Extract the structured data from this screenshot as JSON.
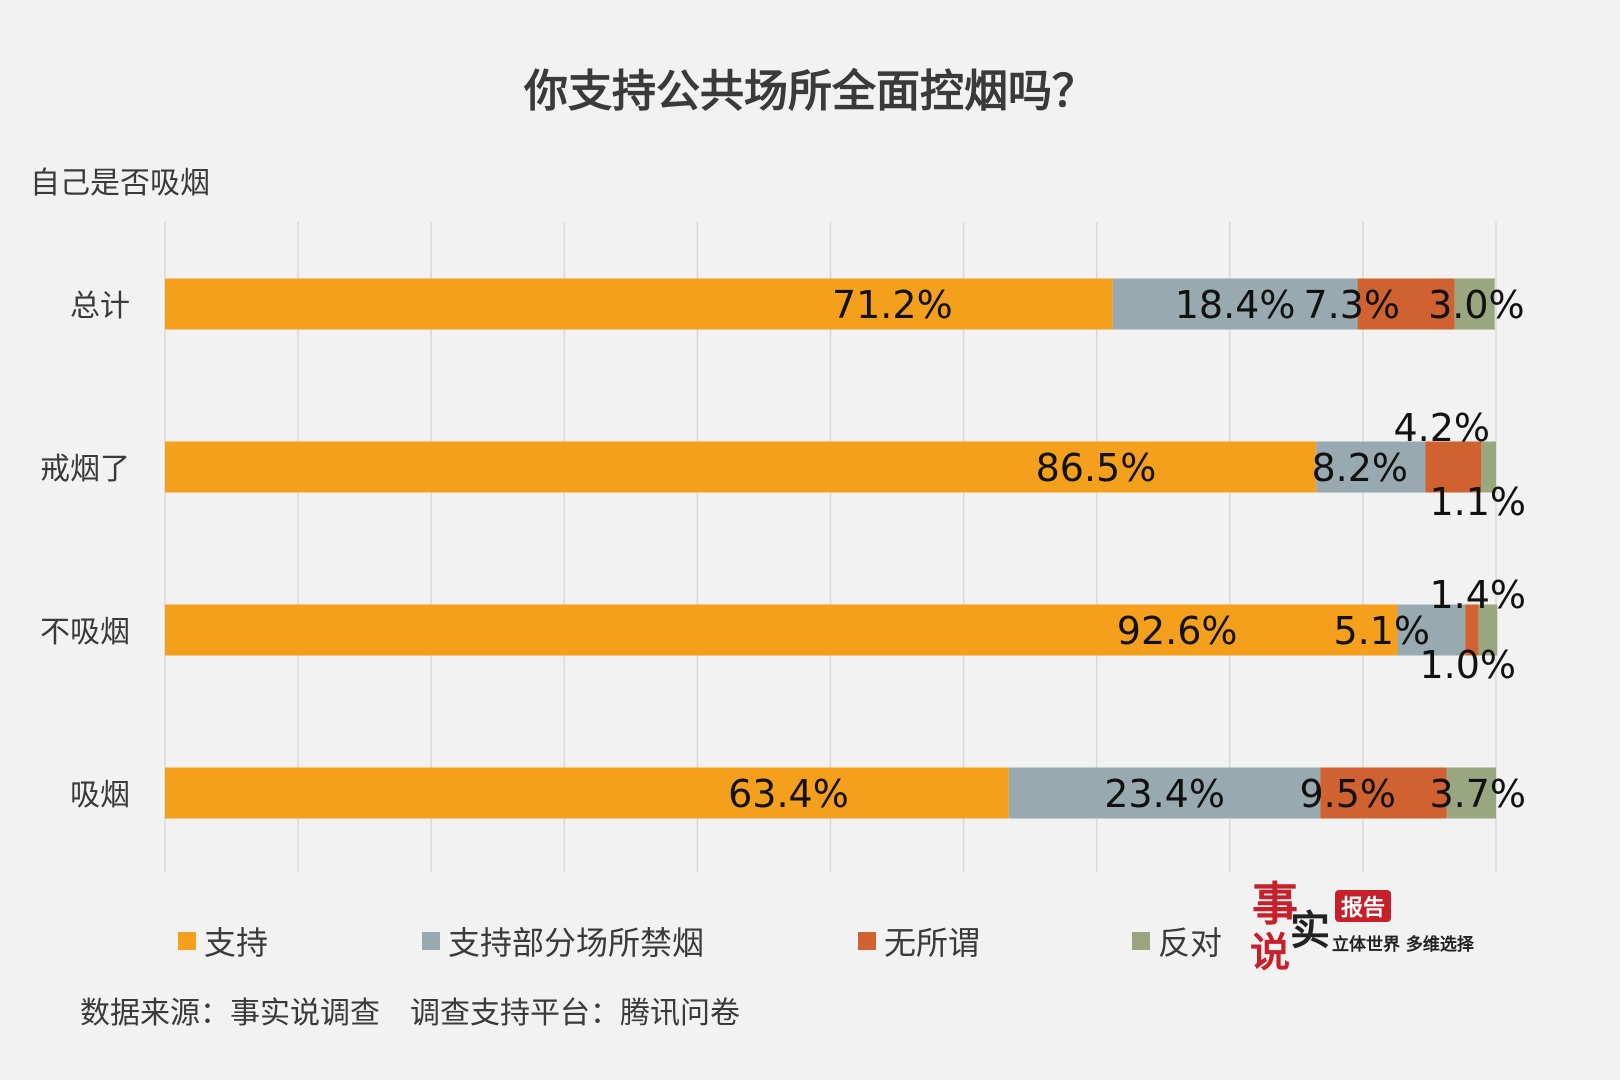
{
  "title": "你支持公共场所全面控烟吗？",
  "axis_title": "自己是否吸烟",
  "source": "数据来源：事实说调查　调查支持平台：腾讯问卷",
  "logo": {
    "char1": "事",
    "char2": "实",
    "char3": "说",
    "badge": "报告",
    "slogan": "立体世界 多维选择"
  },
  "colors": {
    "support": "#f5a01c",
    "partial": "#98aab0",
    "indifferent": "#cf6230",
    "oppose": "#99a67f",
    "grid": "#d9d9d9"
  },
  "legend": [
    "支持",
    "支持部分场所禁烟",
    "无所谓",
    "反对"
  ],
  "chart_data": {
    "type": "bar",
    "orientation": "horizontal",
    "stacked": true,
    "percent": true,
    "title": "你支持公共场所全面控烟吗？",
    "ylabel": "自己是否吸烟",
    "categories": [
      "总计",
      "戒烟了",
      "不吸烟",
      "吸烟"
    ],
    "series": [
      {
        "name": "支持",
        "values": [
          71.2,
          86.5,
          92.6,
          63.4
        ]
      },
      {
        "name": "支持部分场所禁烟",
        "values": [
          18.4,
          8.2,
          5.1,
          23.4
        ]
      },
      {
        "name": "无所谓",
        "values": [
          7.3,
          4.2,
          1.0,
          9.5
        ]
      },
      {
        "name": "反对",
        "values": [
          3.0,
          1.1,
          1.4,
          3.7
        ]
      }
    ],
    "labels": [
      [
        "71.2%",
        "18.4%",
        "7.3%",
        "3.0%"
      ],
      [
        "86.5%",
        "8.2%",
        "4.2%",
        "1.1%"
      ],
      [
        "92.6%",
        "5.1%",
        "1.0%",
        "1.4%"
      ],
      [
        "63.4%",
        "23.4%",
        "9.5%",
        "3.7%"
      ]
    ],
    "xlim": [
      0,
      100
    ],
    "grid": true,
    "legend_position": "bottom"
  }
}
